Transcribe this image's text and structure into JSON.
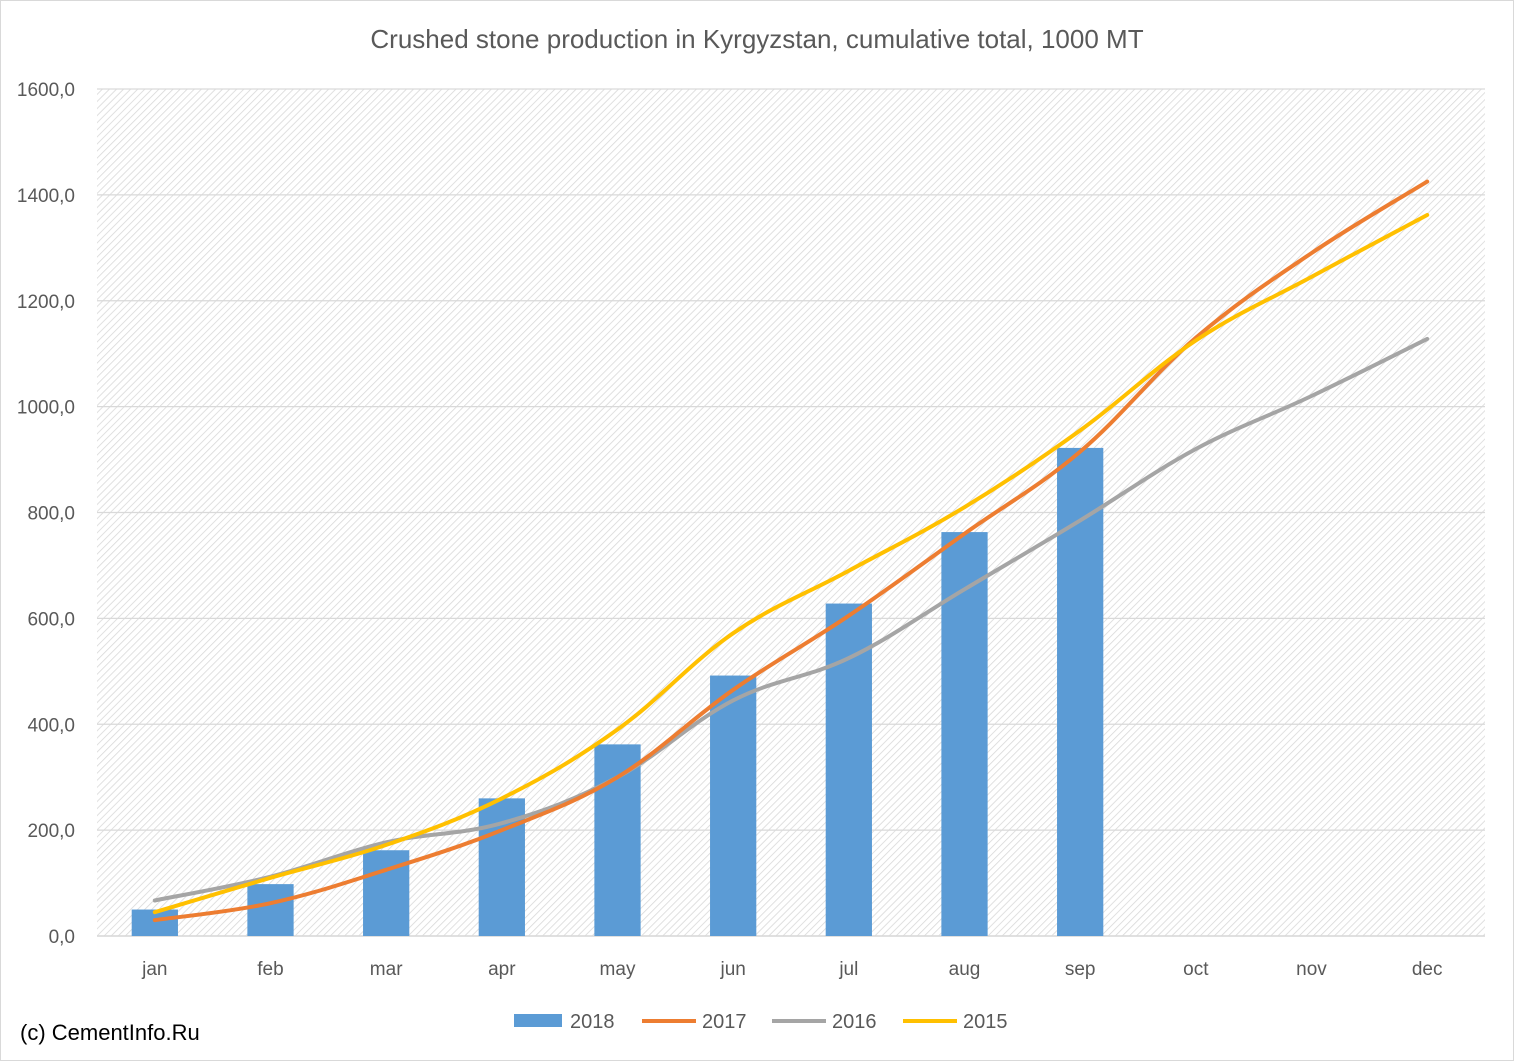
{
  "copyright": "(c) CementInfo.Ru",
  "colors": {
    "bar_2018": "#5b9bd5",
    "line_2017": "#ed7d31",
    "line_2016": "#a5a5a5",
    "line_2015": "#ffc000",
    "grid": "#d9d9d9",
    "text": "#595959"
  },
  "chart_data": {
    "type": "bar",
    "title": "Crushed stone production in Kyrgyzstan, cumulative total, 1000 MT",
    "xlabel": "",
    "ylabel": "",
    "categories": [
      "jan",
      "feb",
      "mar",
      "apr",
      "may",
      "jun",
      "jul",
      "aug",
      "sep",
      "oct",
      "nov",
      "dec"
    ],
    "ylim": [
      0,
      1600
    ],
    "yticks": [
      "0,0",
      "200,0",
      "400,0",
      "600,0",
      "800,0",
      "1000,0",
      "1200,0",
      "1400,0",
      "1600,0"
    ],
    "grid": true,
    "legend_position": "bottom",
    "series": [
      {
        "name": "2018",
        "kind": "bar",
        "values": [
          50,
          98,
          162,
          260,
          362,
          492,
          628,
          763,
          922,
          null,
          null,
          null
        ]
      },
      {
        "name": "2017",
        "kind": "line",
        "values": [
          30,
          62,
          125,
          200,
          300,
          465,
          605,
          760,
          915,
          1130,
          1290,
          1425
        ]
      },
      {
        "name": "2016",
        "kind": "line",
        "values": [
          67,
          112,
          177,
          213,
          300,
          445,
          525,
          655,
          785,
          920,
          1020,
          1128
        ]
      },
      {
        "name": "2015",
        "kind": "line",
        "values": [
          45,
          110,
          172,
          260,
          390,
          572,
          690,
          810,
          955,
          1125,
          1245,
          1362
        ]
      }
    ]
  }
}
